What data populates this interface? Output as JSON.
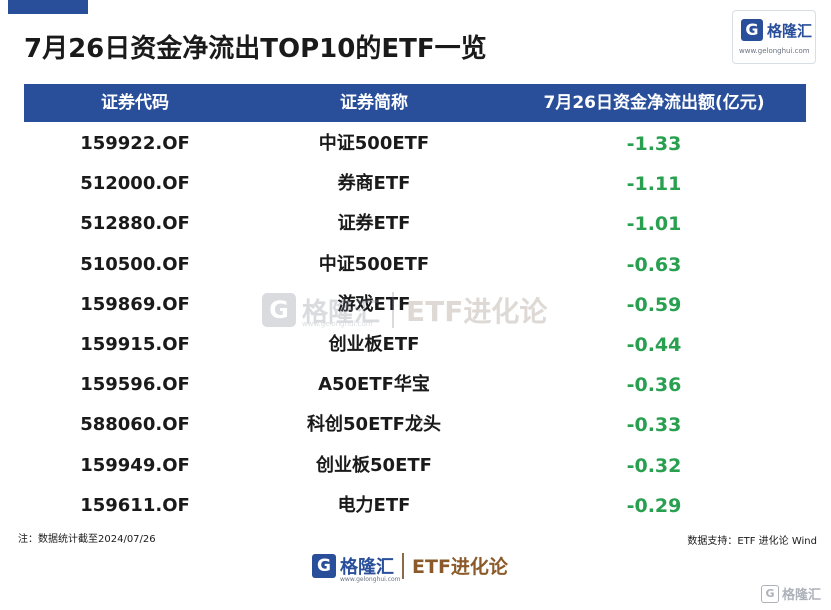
{
  "title": "7月26日资金净流出TOP10的ETF一览",
  "logo": {
    "mark": "G",
    "name": "格隆汇",
    "url": "www.gelonghui.com"
  },
  "table": {
    "headers": [
      "证券代码",
      "证券简称",
      "7月26日资金净流出额(亿元)"
    ],
    "rows": [
      {
        "code": "159922.OF",
        "name": "中证500ETF",
        "value": "-1.33"
      },
      {
        "code": "512000.OF",
        "name": "券商ETF",
        "value": "-1.11"
      },
      {
        "code": "512880.OF",
        "name": "证券ETF",
        "value": "-1.01"
      },
      {
        "code": "510500.OF",
        "name": "中证500ETF",
        "value": "-0.63"
      },
      {
        "code": "159869.OF",
        "name": "游戏ETF",
        "value": "-0.59"
      },
      {
        "code": "159915.OF",
        "name": "创业板ETF",
        "value": "-0.44"
      },
      {
        "code": "159596.OF",
        "name": "A50ETF华宝",
        "value": "-0.36"
      },
      {
        "code": "588060.OF",
        "name": "科创50ETF龙头",
        "value": "-0.33"
      },
      {
        "code": "159949.OF",
        "name": "创业板50ETF",
        "value": "-0.32"
      },
      {
        "code": "159611.OF",
        "name": "电力ETF",
        "value": "-0.29"
      }
    ]
  },
  "watermark": {
    "mark": "G",
    "name": "格隆汇",
    "url": "www.gelonghui.com",
    "brand": "ETF进化论"
  },
  "note": "注：数据统计截至2024/07/26",
  "source": "数据支持：ETF 进化论 Wind",
  "footer": {
    "mark": "G",
    "name": "格隆汇",
    "url": "www.gelonghui.com",
    "brand": "ETF进化论"
  },
  "corner": {
    "mark": "G",
    "name": "格隆汇"
  },
  "colors": {
    "accent": "#2a4f9a",
    "negative": "#28a050"
  }
}
